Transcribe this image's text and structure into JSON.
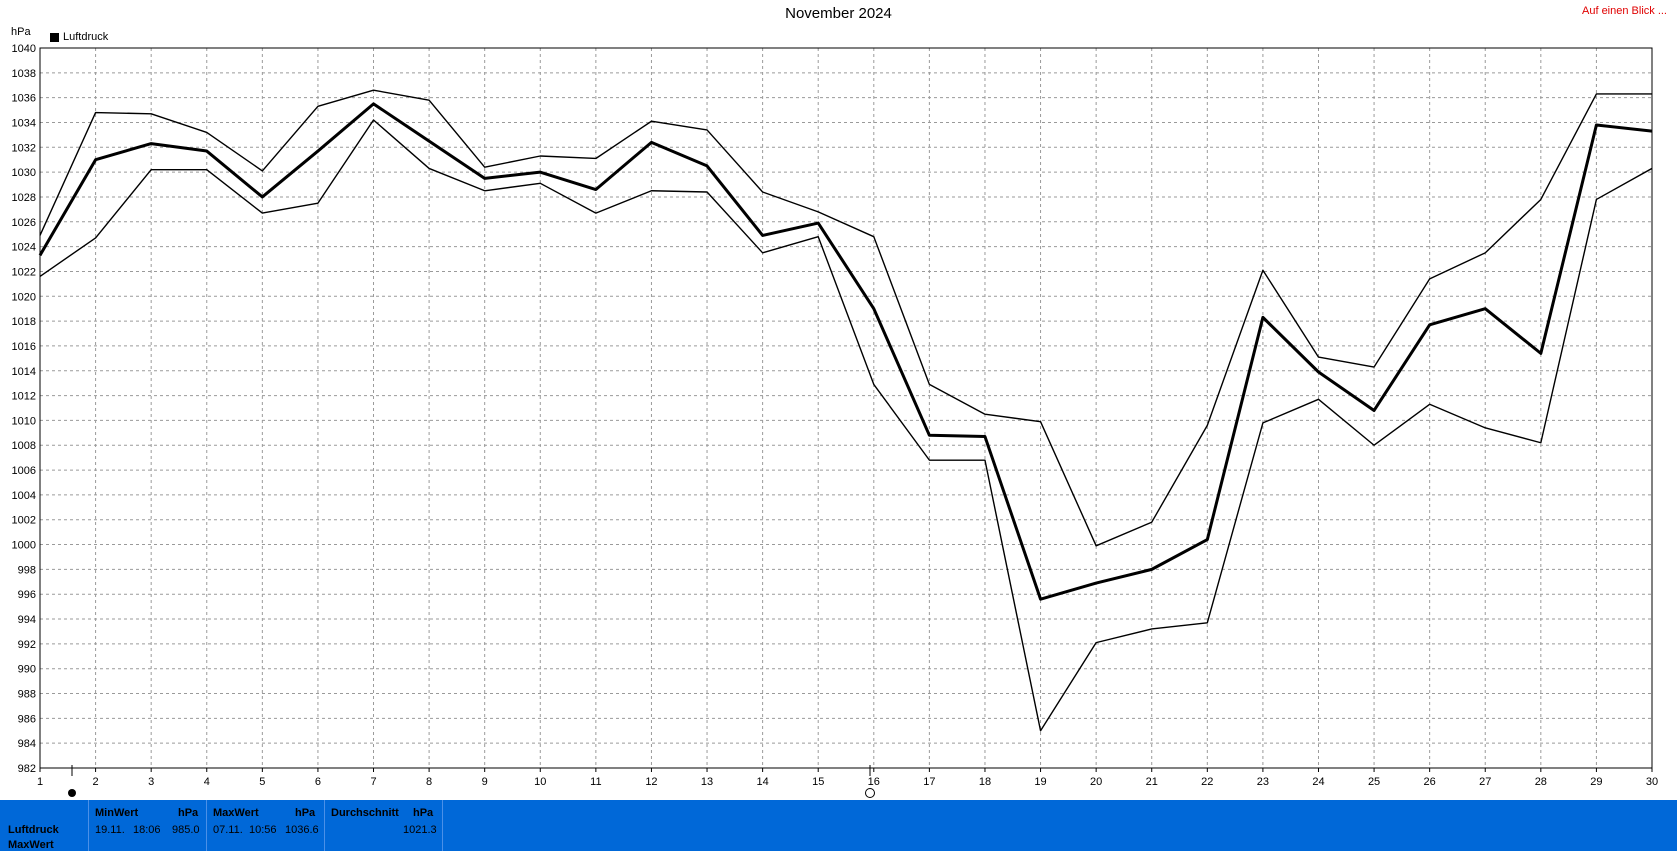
{
  "header": {
    "title": "November 2024",
    "quick_link": "Auf einen Blick ...",
    "unit": "hPa",
    "legend_label": "Luftdruck"
  },
  "colors": {
    "footer_bg": "#0068d8",
    "link": "#e00000",
    "grid": "#9a9a9a"
  },
  "chart_data": {
    "type": "line",
    "title": "November 2024",
    "ylabel": "hPa",
    "ylim": [
      982,
      1040
    ],
    "yticks": [
      982,
      984,
      986,
      988,
      990,
      992,
      994,
      996,
      998,
      1000,
      1002,
      1004,
      1006,
      1008,
      1010,
      1012,
      1014,
      1016,
      1018,
      1020,
      1022,
      1024,
      1026,
      1028,
      1030,
      1032,
      1034,
      1036,
      1038,
      1040
    ],
    "x": [
      1,
      2,
      3,
      4,
      5,
      6,
      7,
      8,
      9,
      10,
      11,
      12,
      13,
      14,
      15,
      16,
      17,
      18,
      19,
      20,
      21,
      22,
      23,
      24,
      25,
      26,
      27,
      28,
      29,
      30
    ],
    "grid": true,
    "legend": [
      "Luftdruck"
    ],
    "series": [
      {
        "name": "Luftdruck",
        "role": "avg",
        "values": [
          1023.3,
          1031.0,
          1032.3,
          1031.7,
          1028.0,
          1031.7,
          1035.5,
          1032.5,
          1029.5,
          1030.0,
          1028.6,
          1032.4,
          1030.5,
          1024.9,
          1025.9,
          1019.0,
          1008.8,
          1008.7,
          995.6,
          996.9,
          998.0,
          1000.4,
          1018.3,
          1013.9,
          1010.8,
          1017.7,
          1019.0,
          1015.4,
          1033.8,
          1033.3
        ]
      },
      {
        "role": "max",
        "values": [
          1024.9,
          1034.8,
          1034.7,
          1033.2,
          1030.1,
          1035.3,
          1036.6,
          1035.8,
          1030.4,
          1031.3,
          1031.1,
          1034.1,
          1033.4,
          1028.4,
          1026.8,
          1024.8,
          1012.9,
          1010.5,
          1009.9,
          999.9,
          1001.8,
          1009.6,
          1022.1,
          1015.1,
          1014.3,
          1021.4,
          1023.5,
          1027.8,
          1036.3,
          1036.3
        ]
      },
      {
        "role": "min",
        "values": [
          1021.6,
          1024.7,
          1030.2,
          1030.2,
          1026.7,
          1027.5,
          1034.2,
          1030.3,
          1028.5,
          1029.1,
          1026.7,
          1028.5,
          1028.4,
          1023.5,
          1024.8,
          1012.9,
          1006.8,
          1006.8,
          985.0,
          992.1,
          993.2,
          993.7,
          1009.8,
          1011.7,
          1008.0,
          1011.3,
          1009.4,
          1008.2,
          1027.8,
          1030.3
        ]
      }
    ]
  },
  "footer": {
    "row_labels": [
      "Luftdruck",
      "MaxWert"
    ],
    "min": {
      "header": "MinWert",
      "unit": "hPa",
      "date": "19.11.",
      "time": "18:06",
      "value": "985.0"
    },
    "max": {
      "header": "MaxWert",
      "unit": "hPa",
      "date": "07.11.",
      "time": "10:56",
      "value": "1036.6"
    },
    "avg": {
      "header": "Durchschnitt",
      "unit": "hPa",
      "value": "1021.3"
    }
  }
}
